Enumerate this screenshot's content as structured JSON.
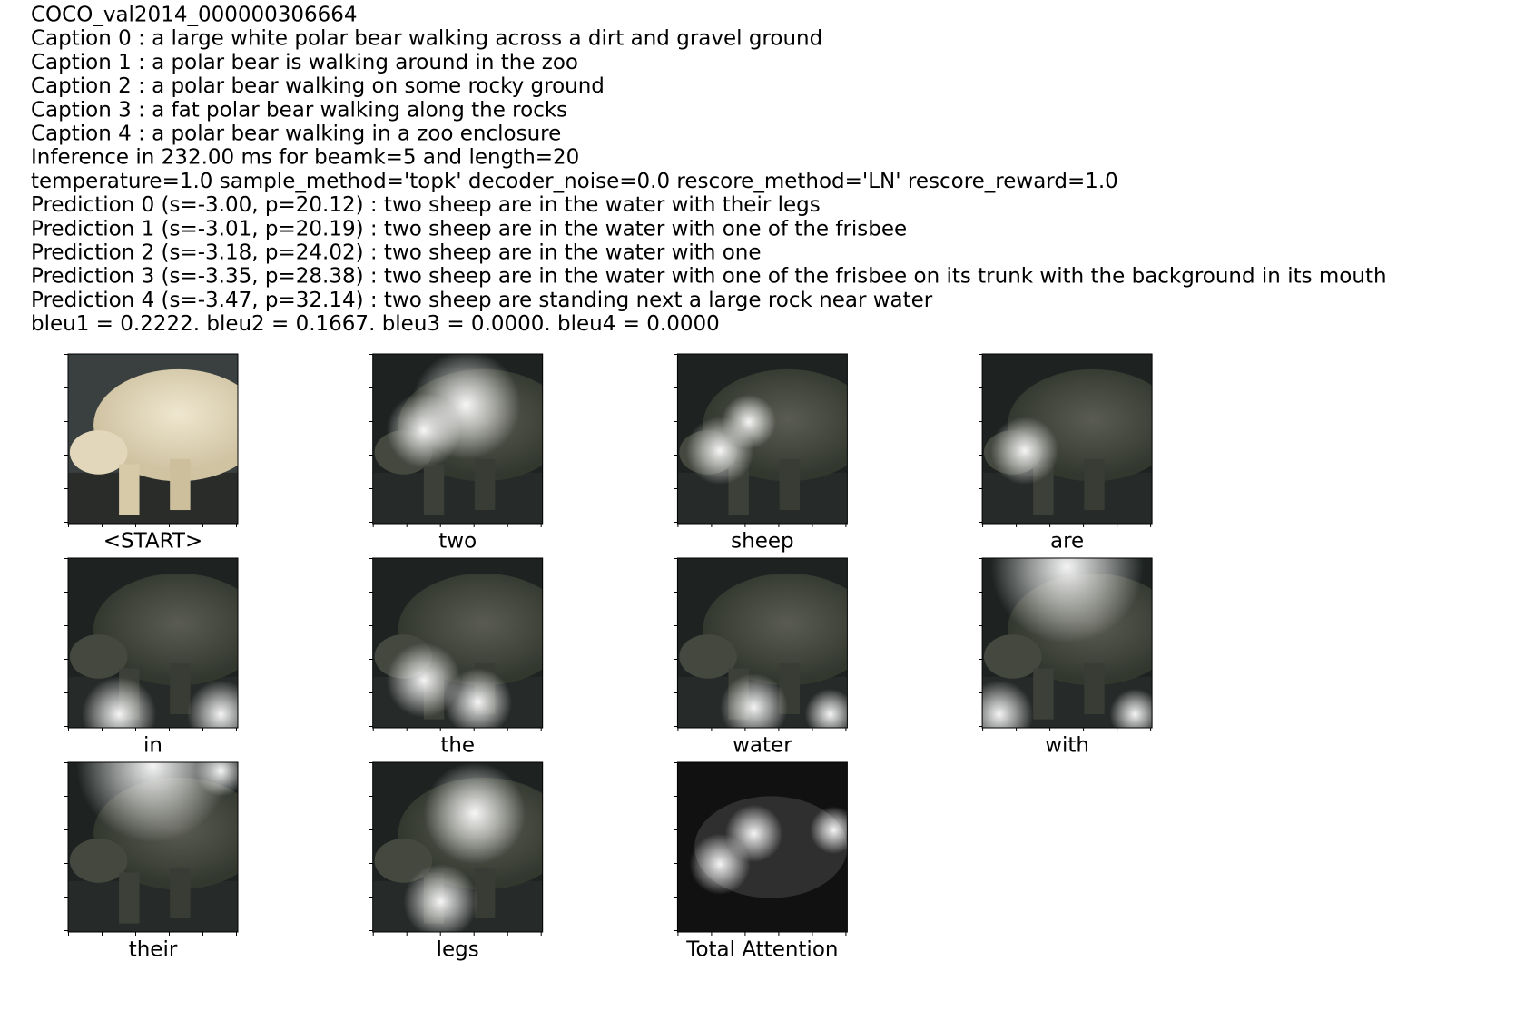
{
  "header_lines": [
    "COCO_val2014_000000306664",
    "Caption 0 : a large white polar bear walking across a dirt and gravel ground",
    "Caption 1 : a polar bear is walking around in the zoo",
    "Caption 2 : a polar bear walking on some rocky ground",
    "Caption 3 : a fat polar bear walking along the rocks",
    "Caption 4 : a polar bear walking in a zoo enclosure",
    "Inference in 232.00 ms for beamk=5 and length=20",
    "temperature=1.0 sample_method='topk' decoder_noise=0.0 rescore_method='LN' rescore_reward=1.0",
    "Prediction 0 (s=-3.00, p=20.12) : two sheep are in the water with their legs",
    "Prediction 1 (s=-3.01, p=20.19) : two sheep are in the water with one of the frisbee",
    "Prediction 2 (s=-3.18, p=24.02) : two sheep are in the water with one",
    "Prediction 3 (s=-3.35, p=28.38) : two sheep are in the water with one of the frisbee on its trunk with the background in its mouth",
    "Prediction 4 (s=-3.47, p=32.14) : two sheep are standing next a large rock near water",
    "bleu1 = 0.2222. bleu2 = 0.1667. bleu3 = 0.0000. bleu4 = 0.0000"
  ],
  "panels": [
    "<START>",
    "two",
    "sheep",
    "are",
    "in",
    "the",
    "water",
    "with",
    "their",
    "legs",
    "Total Attention"
  ]
}
